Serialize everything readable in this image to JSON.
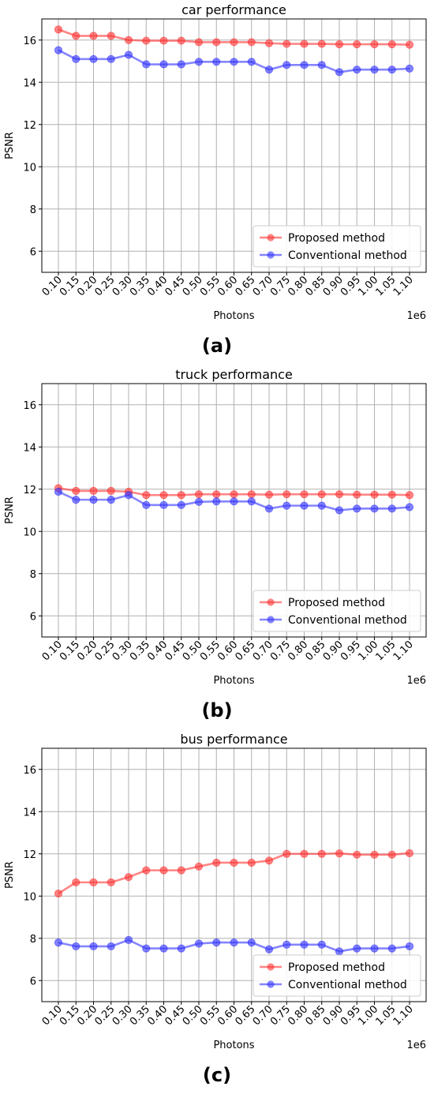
{
  "chart_data": [
    {
      "type": "line",
      "title": "car performance",
      "xlabel": "Photons",
      "ylabel": "PSNR",
      "x_offset_label": "1e6",
      "caption": "(a)",
      "categories": [
        "0.10",
        "0.15",
        "0.20",
        "0.25",
        "0.30",
        "0.35",
        "0.40",
        "0.45",
        "0.50",
        "0.55",
        "0.60",
        "0.65",
        "0.70",
        "0.75",
        "0.80",
        "0.85",
        "0.90",
        "0.95",
        "1.00",
        "1.05",
        "1.10"
      ],
      "ylim": [
        5,
        17
      ],
      "yticks": [
        "6",
        "8",
        "10",
        "12",
        "14",
        "16"
      ],
      "grid": true,
      "legend_position": "lower-right",
      "series": [
        {
          "name": "Proposed method",
          "color": "#ff3333",
          "values": [
            16.5,
            16.2,
            16.2,
            16.2,
            16.0,
            15.97,
            15.97,
            15.97,
            15.9,
            15.9,
            15.9,
            15.9,
            15.85,
            15.82,
            15.82,
            15.82,
            15.8,
            15.8,
            15.8,
            15.8,
            15.78
          ]
        },
        {
          "name": "Conventional method",
          "color": "#3333ff",
          "values": [
            15.52,
            15.1,
            15.1,
            15.1,
            15.3,
            14.85,
            14.85,
            14.85,
            14.97,
            14.97,
            14.97,
            14.97,
            14.6,
            14.82,
            14.82,
            14.82,
            14.48,
            14.6,
            14.6,
            14.6,
            14.65
          ]
        }
      ]
    },
    {
      "type": "line",
      "title": "truck performance",
      "xlabel": "Photons",
      "ylabel": "PSNR",
      "x_offset_label": "1e6",
      "caption": "(b)",
      "categories": [
        "0.10",
        "0.15",
        "0.20",
        "0.25",
        "0.30",
        "0.35",
        "0.40",
        "0.45",
        "0.50",
        "0.55",
        "0.60",
        "0.65",
        "0.70",
        "0.75",
        "0.80",
        "0.85",
        "0.90",
        "0.95",
        "1.00",
        "1.05",
        "1.10"
      ],
      "ylim": [
        5,
        17
      ],
      "yticks": [
        "6",
        "8",
        "10",
        "12",
        "14",
        "16"
      ],
      "grid": true,
      "legend_position": "lower-right",
      "series": [
        {
          "name": "Proposed method",
          "color": "#ff3333",
          "values": [
            12.05,
            11.92,
            11.92,
            11.92,
            11.88,
            11.72,
            11.72,
            11.72,
            11.76,
            11.76,
            11.76,
            11.76,
            11.74,
            11.76,
            11.76,
            11.76,
            11.76,
            11.74,
            11.74,
            11.74,
            11.72
          ]
        },
        {
          "name": "Conventional method",
          "color": "#3333ff",
          "values": [
            11.88,
            11.5,
            11.5,
            11.5,
            11.72,
            11.25,
            11.25,
            11.25,
            11.4,
            11.42,
            11.42,
            11.42,
            11.08,
            11.22,
            11.22,
            11.22,
            11.0,
            11.08,
            11.08,
            11.08,
            11.15
          ]
        }
      ]
    },
    {
      "type": "line",
      "title": "bus performance",
      "xlabel": "Photons",
      "ylabel": "PSNR",
      "x_offset_label": "1e6",
      "caption": "(c)",
      "categories": [
        "0.10",
        "0.15",
        "0.20",
        "0.25",
        "0.30",
        "0.35",
        "0.40",
        "0.45",
        "0.50",
        "0.55",
        "0.60",
        "0.65",
        "0.70",
        "0.75",
        "0.80",
        "0.85",
        "0.90",
        "0.95",
        "1.00",
        "1.05",
        "1.10"
      ],
      "ylim": [
        5,
        17
      ],
      "yticks": [
        "6",
        "8",
        "10",
        "12",
        "14",
        "16"
      ],
      "grid": true,
      "legend_position": "lower-right",
      "series": [
        {
          "name": "Proposed method",
          "color": "#ff3333",
          "values": [
            10.12,
            10.65,
            10.65,
            10.65,
            10.9,
            11.22,
            11.22,
            11.22,
            11.4,
            11.58,
            11.58,
            11.58,
            11.68,
            12.0,
            12.0,
            12.0,
            12.02,
            11.96,
            11.96,
            11.96,
            12.03
          ]
        },
        {
          "name": "Conventional method",
          "color": "#3333ff",
          "values": [
            7.8,
            7.62,
            7.62,
            7.62,
            7.92,
            7.52,
            7.52,
            7.52,
            7.75,
            7.8,
            7.8,
            7.8,
            7.48,
            7.7,
            7.7,
            7.7,
            7.38,
            7.52,
            7.52,
            7.52,
            7.62
          ]
        }
      ]
    }
  ]
}
